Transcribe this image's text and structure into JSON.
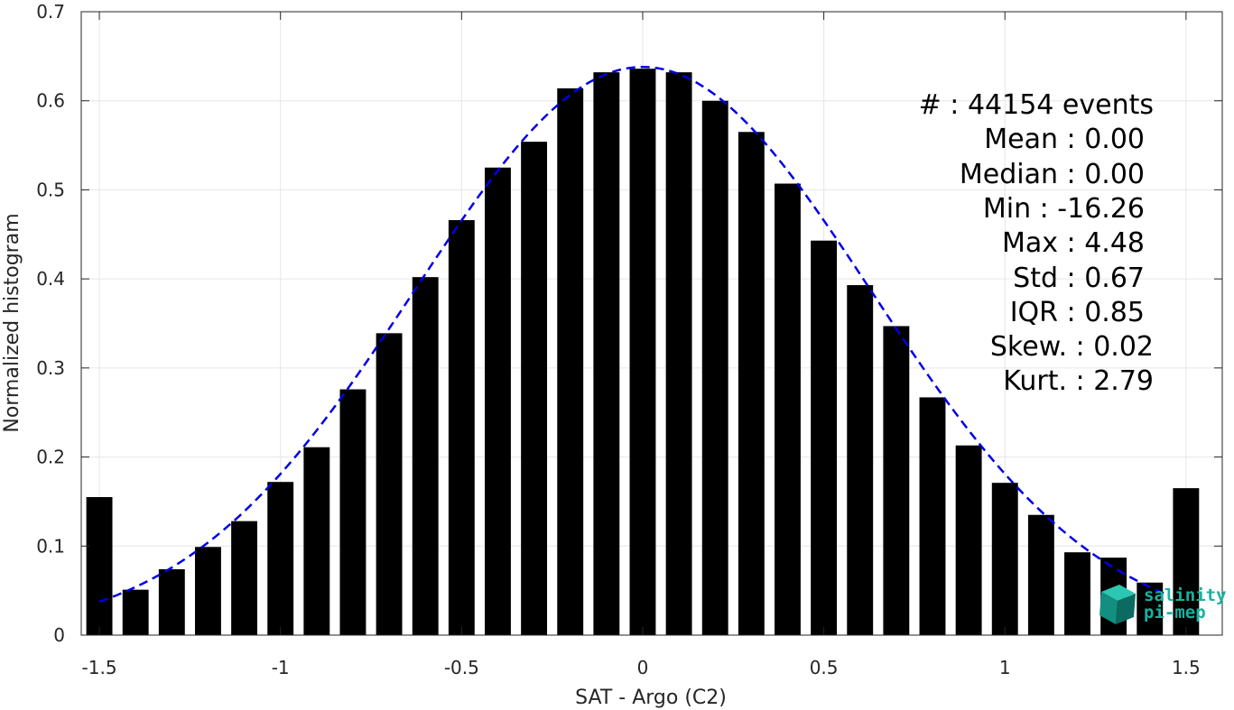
{
  "chart_data": {
    "type": "bar",
    "title": "",
    "xlabel": "SAT - Argo (C2)",
    "ylabel": "Normalized histogram",
    "xlim": [
      -1.55,
      1.6
    ],
    "ylim": [
      0,
      0.7
    ],
    "xticks": [
      -1.5,
      -1,
      -0.5,
      0,
      0.5,
      1,
      1.5
    ],
    "xtick_labels": [
      "-1.5",
      "-1",
      "-0.5",
      "0",
      "0.5",
      "1",
      "1.5"
    ],
    "yticks": [
      0,
      0.1,
      0.2,
      0.3,
      0.4,
      0.5,
      0.6,
      0.7
    ],
    "ytick_labels": [
      "0",
      "0.1",
      "0.2",
      "0.3",
      "0.4",
      "0.5",
      "0.6",
      "0.7"
    ],
    "grid": true,
    "x": [
      -1.5,
      -1.4,
      -1.3,
      -1.2,
      -1.1,
      -1.0,
      -0.9,
      -0.8,
      -0.7,
      -0.6,
      -0.5,
      -0.4,
      -0.3,
      -0.2,
      -0.1,
      0.0,
      0.1,
      0.2,
      0.3,
      0.4,
      0.5,
      0.6,
      0.7,
      0.8,
      0.9,
      1.0,
      1.1,
      1.2,
      1.3,
      1.4,
      1.5
    ],
    "values": [
      0.155,
      0.051,
      0.074,
      0.099,
      0.128,
      0.172,
      0.211,
      0.276,
      0.339,
      0.402,
      0.466,
      0.525,
      0.554,
      0.614,
      0.632,
      0.636,
      0.632,
      0.6,
      0.565,
      0.507,
      0.443,
      0.393,
      0.347,
      0.267,
      0.213,
      0.171,
      0.135,
      0.093,
      0.087,
      0.059,
      0.165
    ],
    "bar_color": "#000000",
    "fit_curve": {
      "style": "dashed",
      "color": "#0000e6",
      "mean": 0.0,
      "std": 0.63,
      "peak": 0.638,
      "x_range": [
        -1.5,
        1.45
      ]
    }
  },
  "stats": [
    {
      "label": "#  : 44154 events"
    },
    {
      "label": "Mean : 0.00"
    },
    {
      "label": "Median : 0.00"
    },
    {
      "label": "Min : -16.26"
    },
    {
      "label": "Max : 4.48"
    },
    {
      "label": "Std : 0.67"
    },
    {
      "label": "IQR : 0.85"
    },
    {
      "label": "Skew. : 0.02"
    },
    {
      "label": "Kurt. : 2.79"
    }
  ],
  "logo": {
    "line1": "salinity",
    "line2": "pi-mep",
    "color": "#17b3a0"
  }
}
